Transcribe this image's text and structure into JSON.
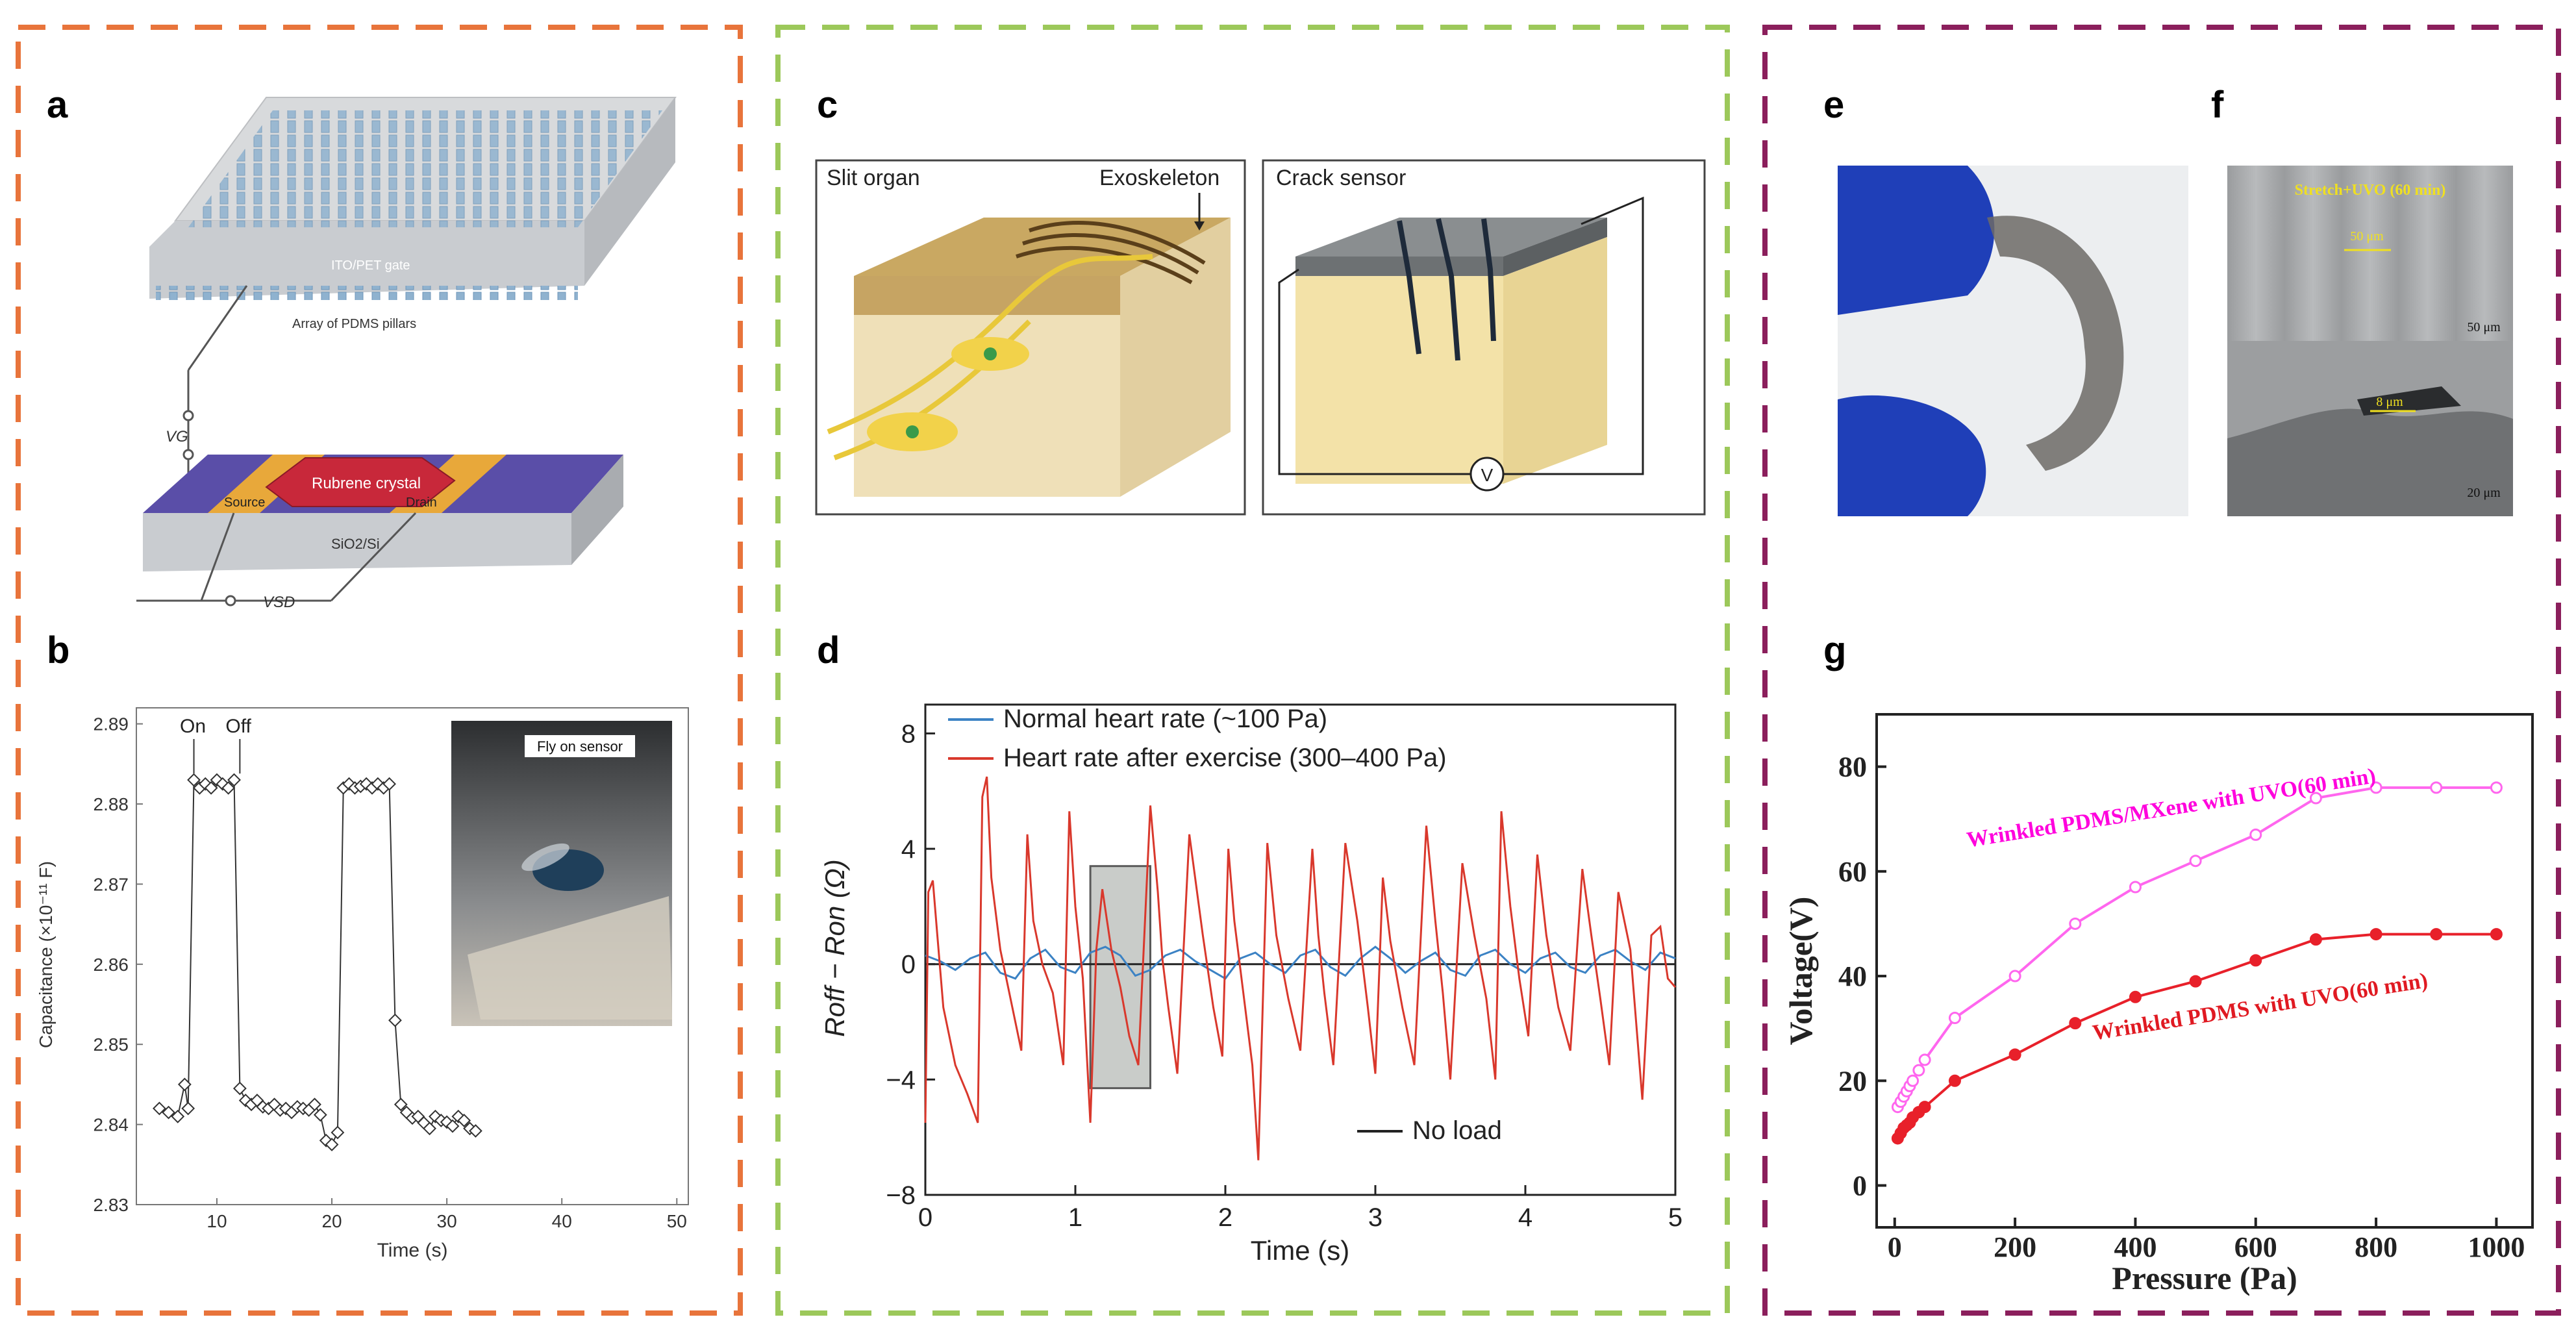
{
  "panel_labels": {
    "a": "a",
    "b": "b",
    "c": "c",
    "d": "d",
    "e": "e",
    "f": "f",
    "g": "g"
  },
  "colors": {
    "frame_left": "#e8743b",
    "frame_mid": "#9cc85a",
    "frame_right": "#8b1f5c",
    "series_normal": "#3b82c4",
    "series_exercise": "#d9382c",
    "series_mxene": "#ff66ee",
    "series_pdms": "#e8202a",
    "mxene_label": "#ff00dd",
    "pdms_label": "#e01a22"
  },
  "panel_a": {
    "gate_label": "ITO/PET gate",
    "pillars_label": "Array of PDMS pillars",
    "vg_label": "VG",
    "crystal_label": "Rubrene crystal",
    "source_label": "Source",
    "drain_label": "Drain",
    "substrate_label": "SiO2/Si",
    "vsd_label": "VSD"
  },
  "panel_b": {
    "on_label": "On",
    "off_label": "Off",
    "inset_label": "Fly on sensor",
    "chart_data": {
      "type": "scatter",
      "xlabel": "Time (s)",
      "ylabel": "Capacitance (×10⁻¹¹ F)",
      "xlim": [
        3,
        51
      ],
      "ylim": [
        2.83,
        2.892
      ],
      "xticks": [
        10,
        20,
        30,
        40,
        50
      ],
      "yticks": [
        2.83,
        2.84,
        2.85,
        2.86,
        2.87,
        2.88,
        2.89
      ],
      "x": [
        5,
        5.8,
        6.6,
        7.2,
        7.5,
        8,
        8.5,
        9,
        9.5,
        10,
        10.5,
        11,
        11.5,
        12,
        12.5,
        13,
        13.5,
        14,
        14.5,
        15,
        15.5,
        16,
        16.5,
        17,
        17.5,
        18,
        18.5,
        19,
        19.5,
        20,
        20.5,
        21,
        21.5,
        22,
        22.5,
        23,
        23.5,
        24,
        24.5,
        25,
        25.5,
        26,
        26.5,
        27,
        27.5,
        28,
        28.5,
        29,
        29.5,
        30,
        30.5,
        31,
        31.5,
        32,
        32.5
      ],
      "y": [
        2.842,
        2.8415,
        2.841,
        2.845,
        2.842,
        2.883,
        2.882,
        2.8825,
        2.882,
        2.883,
        2.8825,
        2.882,
        2.883,
        2.8445,
        2.843,
        2.8425,
        2.843,
        2.8422,
        2.842,
        2.8425,
        2.8418,
        2.842,
        2.8415,
        2.8422,
        2.842,
        2.8418,
        2.8425,
        2.8412,
        2.838,
        2.8375,
        2.839,
        2.882,
        2.8825,
        2.882,
        2.8822,
        2.8825,
        2.882,
        2.8825,
        2.882,
        2.8825,
        2.853,
        2.8425,
        2.8415,
        2.8408,
        2.841,
        2.8402,
        2.8395,
        2.841,
        2.8405,
        2.8403,
        2.8398,
        2.841,
        2.8405,
        2.8395,
        2.8392
      ]
    }
  },
  "panel_c": {
    "slit_label": "Slit organ",
    "exo_label": "Exoskeleton",
    "crack_label": "Crack sensor",
    "v_label": "V"
  },
  "panel_d": {
    "chart_data": {
      "type": "line",
      "xlabel": "Time (s)",
      "ylabel": "Roff − Ron (Ω)",
      "xlim": [
        0,
        5
      ],
      "ylim": [
        -8,
        9
      ],
      "xticks": [
        0,
        1,
        2,
        3,
        4,
        5
      ],
      "yticks": [
        -8,
        -4,
        0,
        4,
        8
      ],
      "series": [
        {
          "name": "Normal heart rate (~100 Pa)",
          "x": [
            0,
            0.1,
            0.2,
            0.3,
            0.4,
            0.5,
            0.6,
            0.7,
            0.8,
            0.9,
            1.0,
            1.1,
            1.2,
            1.3,
            1.4,
            1.5,
            1.6,
            1.7,
            1.8,
            1.9,
            2.0,
            2.1,
            2.2,
            2.3,
            2.4,
            2.5,
            2.6,
            2.7,
            2.8,
            2.9,
            3.0,
            3.1,
            3.2,
            3.3,
            3.4,
            3.5,
            3.6,
            3.7,
            3.8,
            3.9,
            4.0,
            4.1,
            4.2,
            4.3,
            4.4,
            4.5,
            4.6,
            4.7,
            4.8,
            4.9,
            5.0
          ],
          "y": [
            0.3,
            0.1,
            -0.2,
            0.2,
            0.4,
            -0.3,
            -0.5,
            0.2,
            0.5,
            -0.1,
            -0.3,
            0.4,
            0.6,
            0.3,
            -0.4,
            -0.2,
            0.3,
            0.5,
            0.1,
            -0.2,
            -0.5,
            0.2,
            0.4,
            0.0,
            -0.3,
            0.3,
            0.5,
            -0.1,
            -0.4,
            0.2,
            0.6,
            0.2,
            -0.3,
            0.1,
            0.4,
            -0.2,
            -0.4,
            0.3,
            0.5,
            0.0,
            -0.3,
            0.2,
            0.4,
            -0.1,
            -0.3,
            0.3,
            0.5,
            0.1,
            -0.2,
            0.4,
            0.2
          ]
        },
        {
          "name": "Heart rate after exercise (300–400 Pa)",
          "x": [
            0,
            0.02,
            0.05,
            0.08,
            0.12,
            0.2,
            0.28,
            0.35,
            0.38,
            0.41,
            0.44,
            0.5,
            0.58,
            0.64,
            0.68,
            0.72,
            0.78,
            0.85,
            0.92,
            0.96,
            1.0,
            1.05,
            1.1,
            1.14,
            1.18,
            1.24,
            1.3,
            1.36,
            1.42,
            1.5,
            1.55,
            1.58,
            1.62,
            1.68,
            1.76,
            1.85,
            1.92,
            1.98,
            2.02,
            2.06,
            2.12,
            2.18,
            2.22,
            2.28,
            2.34,
            2.42,
            2.5,
            2.58,
            2.62,
            2.66,
            2.72,
            2.8,
            2.88,
            2.95,
            3.0,
            3.05,
            3.1,
            3.18,
            3.26,
            3.34,
            3.4,
            3.45,
            3.5,
            3.58,
            3.66,
            3.74,
            3.8,
            3.84,
            3.9,
            3.96,
            4.02,
            4.08,
            4.14,
            4.22,
            4.3,
            4.38,
            4.44,
            4.5,
            4.56,
            4.62,
            4.7,
            4.78,
            4.84,
            4.9,
            4.95,
            5.0
          ],
          "y": [
            -5.5,
            2.5,
            2.9,
            1.0,
            -1.5,
            -3.5,
            -4.5,
            -5.5,
            5.8,
            6.5,
            3.0,
            0.5,
            -1.5,
            -3.0,
            4.5,
            1.5,
            0.0,
            -1.0,
            -3.5,
            5.3,
            2.0,
            -0.5,
            -5.5,
            0.5,
            2.6,
            0.5,
            -0.8,
            -2.5,
            -3.5,
            5.5,
            2.5,
            0.2,
            -1.5,
            -3.8,
            4.5,
            1.0,
            -1.5,
            -3.2,
            4.0,
            1.5,
            -1.0,
            -3.5,
            -6.8,
            4.2,
            1.0,
            -1.2,
            -3.0,
            4.0,
            1.0,
            -1.0,
            -3.5,
            4.2,
            1.5,
            -1.5,
            -3.8,
            3.0,
            0.8,
            -1.5,
            -3.5,
            4.8,
            1.5,
            -1.0,
            -4.0,
            3.5,
            1.0,
            -1.2,
            -4.0,
            5.3,
            2.0,
            -0.5,
            -2.5,
            3.8,
            1.0,
            -1.5,
            -3.0,
            3.3,
            1.0,
            -1.2,
            -3.5,
            2.5,
            0.5,
            -4.7,
            1.0,
            1.3,
            -0.5,
            -0.8
          ]
        },
        {
          "name": "No load",
          "x": [
            0,
            5
          ],
          "y": [
            0,
            0
          ]
        }
      ],
      "highlight_box": {
        "x": [
          1.1,
          1.5
        ],
        "y": [
          -4.3,
          3.4
        ]
      }
    }
  },
  "panel_f": {
    "top_label": "Stretch+UVO (60 min)",
    "scale1": "50 μm",
    "scale2": "50 μm",
    "scale3": "8 μm",
    "scale4": "20 μm"
  },
  "panel_g": {
    "mxene_label": "Wrinkled PDMS/MXene with UVO(60 min)",
    "pdms_label": "Wrinkled PDMS with UVO(60 min)",
    "chart_data": {
      "type": "line",
      "xlabel": "Pressure (Pa)",
      "ylabel": "Voltage(V)",
      "xlim": [
        -30,
        1060
      ],
      "ylim": [
        -8,
        90
      ],
      "xticks": [
        0,
        200,
        400,
        600,
        800,
        1000
      ],
      "yticks": [
        0,
        20,
        40,
        60,
        80
      ],
      "series": [
        {
          "name": "Wrinkled PDMS/MXene with UVO(60 min)",
          "x": [
            5,
            10,
            15,
            20,
            25,
            30,
            40,
            50,
            100,
            200,
            300,
            400,
            500,
            600,
            700,
            800,
            900,
            1000
          ],
          "y": [
            15,
            16,
            17,
            18,
            19,
            20,
            22,
            24,
            32,
            40,
            50,
            57,
            62,
            67,
            74,
            76,
            76,
            76
          ]
        },
        {
          "name": "Wrinkled PDMS with UVO(60 min)",
          "x": [
            5,
            10,
            15,
            20,
            25,
            30,
            40,
            50,
            100,
            200,
            300,
            400,
            500,
            600,
            700,
            800,
            900,
            1000
          ],
          "y": [
            9,
            10,
            11,
            11.5,
            12,
            13,
            14,
            15,
            20,
            25,
            31,
            36,
            39,
            43,
            47,
            48,
            48,
            48
          ]
        }
      ]
    }
  }
}
